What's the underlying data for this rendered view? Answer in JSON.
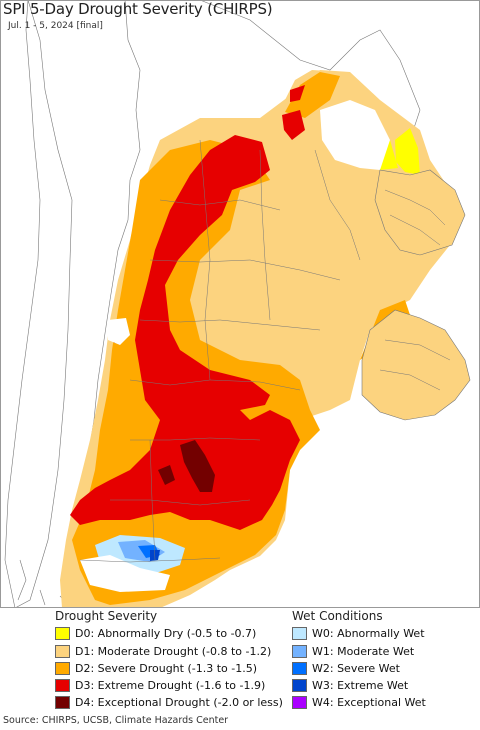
{
  "title": "SPI 5-Day Drought Severity (CHIRPS)",
  "subtitle": "Jul. 1 - 5, 2024 [final]",
  "source": "Source: CHIRPS, UCSB, Climate Hazards Center",
  "colors": {
    "background": "#ffffff",
    "border": "#555555",
    "D0": "#ffff00",
    "D1": "#fcd37f",
    "D2": "#ffaa00",
    "D3": "#e60000",
    "D4": "#730000",
    "W0": "#bee8ff",
    "W1": "#73b2ff",
    "W2": "#0070ff",
    "W3": "#0044cc",
    "W4": "#aa00ff"
  },
  "legend": {
    "drought_title": "Drought Severity",
    "wet_title": "Wet Conditions",
    "drought": [
      {
        "code": "D0",
        "label": "D0: Abnormally Dry (-0.5 to -0.7)",
        "color": "#ffff00"
      },
      {
        "code": "D1",
        "label": "D1: Moderate Drought (-0.8 to -1.2)",
        "color": "#fcd37f"
      },
      {
        "code": "D2",
        "label": "D2: Severe Drought (-1.3 to -1.5)",
        "color": "#ffaa00"
      },
      {
        "code": "D3",
        "label": "D3: Extreme Drought (-1.6 to -1.9)",
        "color": "#e60000"
      },
      {
        "code": "D4",
        "label": "D4: Exceptional Drought (-2.0 or less)",
        "color": "#730000"
      }
    ],
    "wet": [
      {
        "code": "W0",
        "label": "W0: Abnormally Wet",
        "color": "#bee8ff"
      },
      {
        "code": "W1",
        "label": "W1: Moderate Wet",
        "color": "#73b2ff"
      },
      {
        "code": "W2",
        "label": "W2: Severe Wet",
        "color": "#0070ff"
      },
      {
        "code": "W3",
        "label": "W3: Extreme Wet",
        "color": "#0044cc"
      },
      {
        "code": "W4",
        "label": "W4: Exceptional Wet",
        "color": "#aa00ff"
      }
    ]
  }
}
